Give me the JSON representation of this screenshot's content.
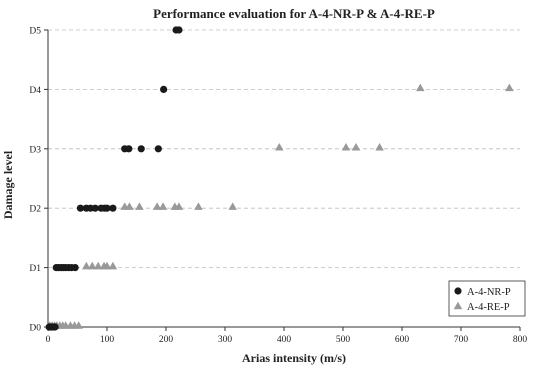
{
  "chart_data": {
    "type": "scatter",
    "title": "Performance evaluation for A-4-NR-P & A-4-RE-P",
    "xlabel": "Arias intensity (m/s)",
    "ylabel": "Damage level",
    "xlim": [
      0,
      800
    ],
    "ylim": [
      0,
      5
    ],
    "xticks": [
      "0",
      "100",
      "200",
      "300",
      "400",
      "500",
      "600",
      "700",
      "800"
    ],
    "yticks": [
      "D0",
      "D1",
      "D2",
      "D3",
      "D4",
      "D5"
    ],
    "grid": "horizontal dashed",
    "legend_position": "bottom-right",
    "series": [
      {
        "name": "A-4-NR-P",
        "marker": "circle",
        "color": "#1a1a1a",
        "points": [
          [
            2,
            0
          ],
          [
            4,
            0
          ],
          [
            6,
            0
          ],
          [
            8,
            0
          ],
          [
            10,
            0
          ],
          [
            12,
            0
          ],
          [
            14,
            1
          ],
          [
            18,
            1
          ],
          [
            22,
            1
          ],
          [
            26,
            1
          ],
          [
            30,
            1
          ],
          [
            35,
            1
          ],
          [
            40,
            1
          ],
          [
            46,
            1
          ],
          [
            55,
            2
          ],
          [
            65,
            2
          ],
          [
            72,
            2
          ],
          [
            80,
            2
          ],
          [
            90,
            2
          ],
          [
            96,
            2
          ],
          [
            100,
            2
          ],
          [
            110,
            2
          ],
          [
            130,
            3
          ],
          [
            137,
            3
          ],
          [
            158,
            3
          ],
          [
            187,
            3
          ],
          [
            196,
            4
          ],
          [
            217,
            5
          ],
          [
            222,
            5
          ]
        ]
      },
      {
        "name": "A-4-RE-P",
        "marker": "triangle",
        "color": "#999999",
        "points": [
          [
            3,
            0
          ],
          [
            7,
            0
          ],
          [
            11,
            0
          ],
          [
            15,
            0
          ],
          [
            20,
            0
          ],
          [
            25,
            0
          ],
          [
            30,
            0
          ],
          [
            38,
            0
          ],
          [
            45,
            0
          ],
          [
            52,
            0
          ],
          [
            65,
            1
          ],
          [
            75,
            1
          ],
          [
            85,
            1
          ],
          [
            95,
            1
          ],
          [
            100,
            1
          ],
          [
            110,
            1
          ],
          [
            130,
            2
          ],
          [
            138,
            2
          ],
          [
            155,
            2
          ],
          [
            185,
            2
          ],
          [
            195,
            2
          ],
          [
            215,
            2
          ],
          [
            222,
            2
          ],
          [
            255,
            2
          ],
          [
            313,
            2
          ],
          [
            392,
            3
          ],
          [
            505,
            3
          ],
          [
            522,
            3
          ],
          [
            562,
            3
          ],
          [
            631,
            4
          ],
          [
            782,
            4
          ]
        ]
      }
    ]
  }
}
